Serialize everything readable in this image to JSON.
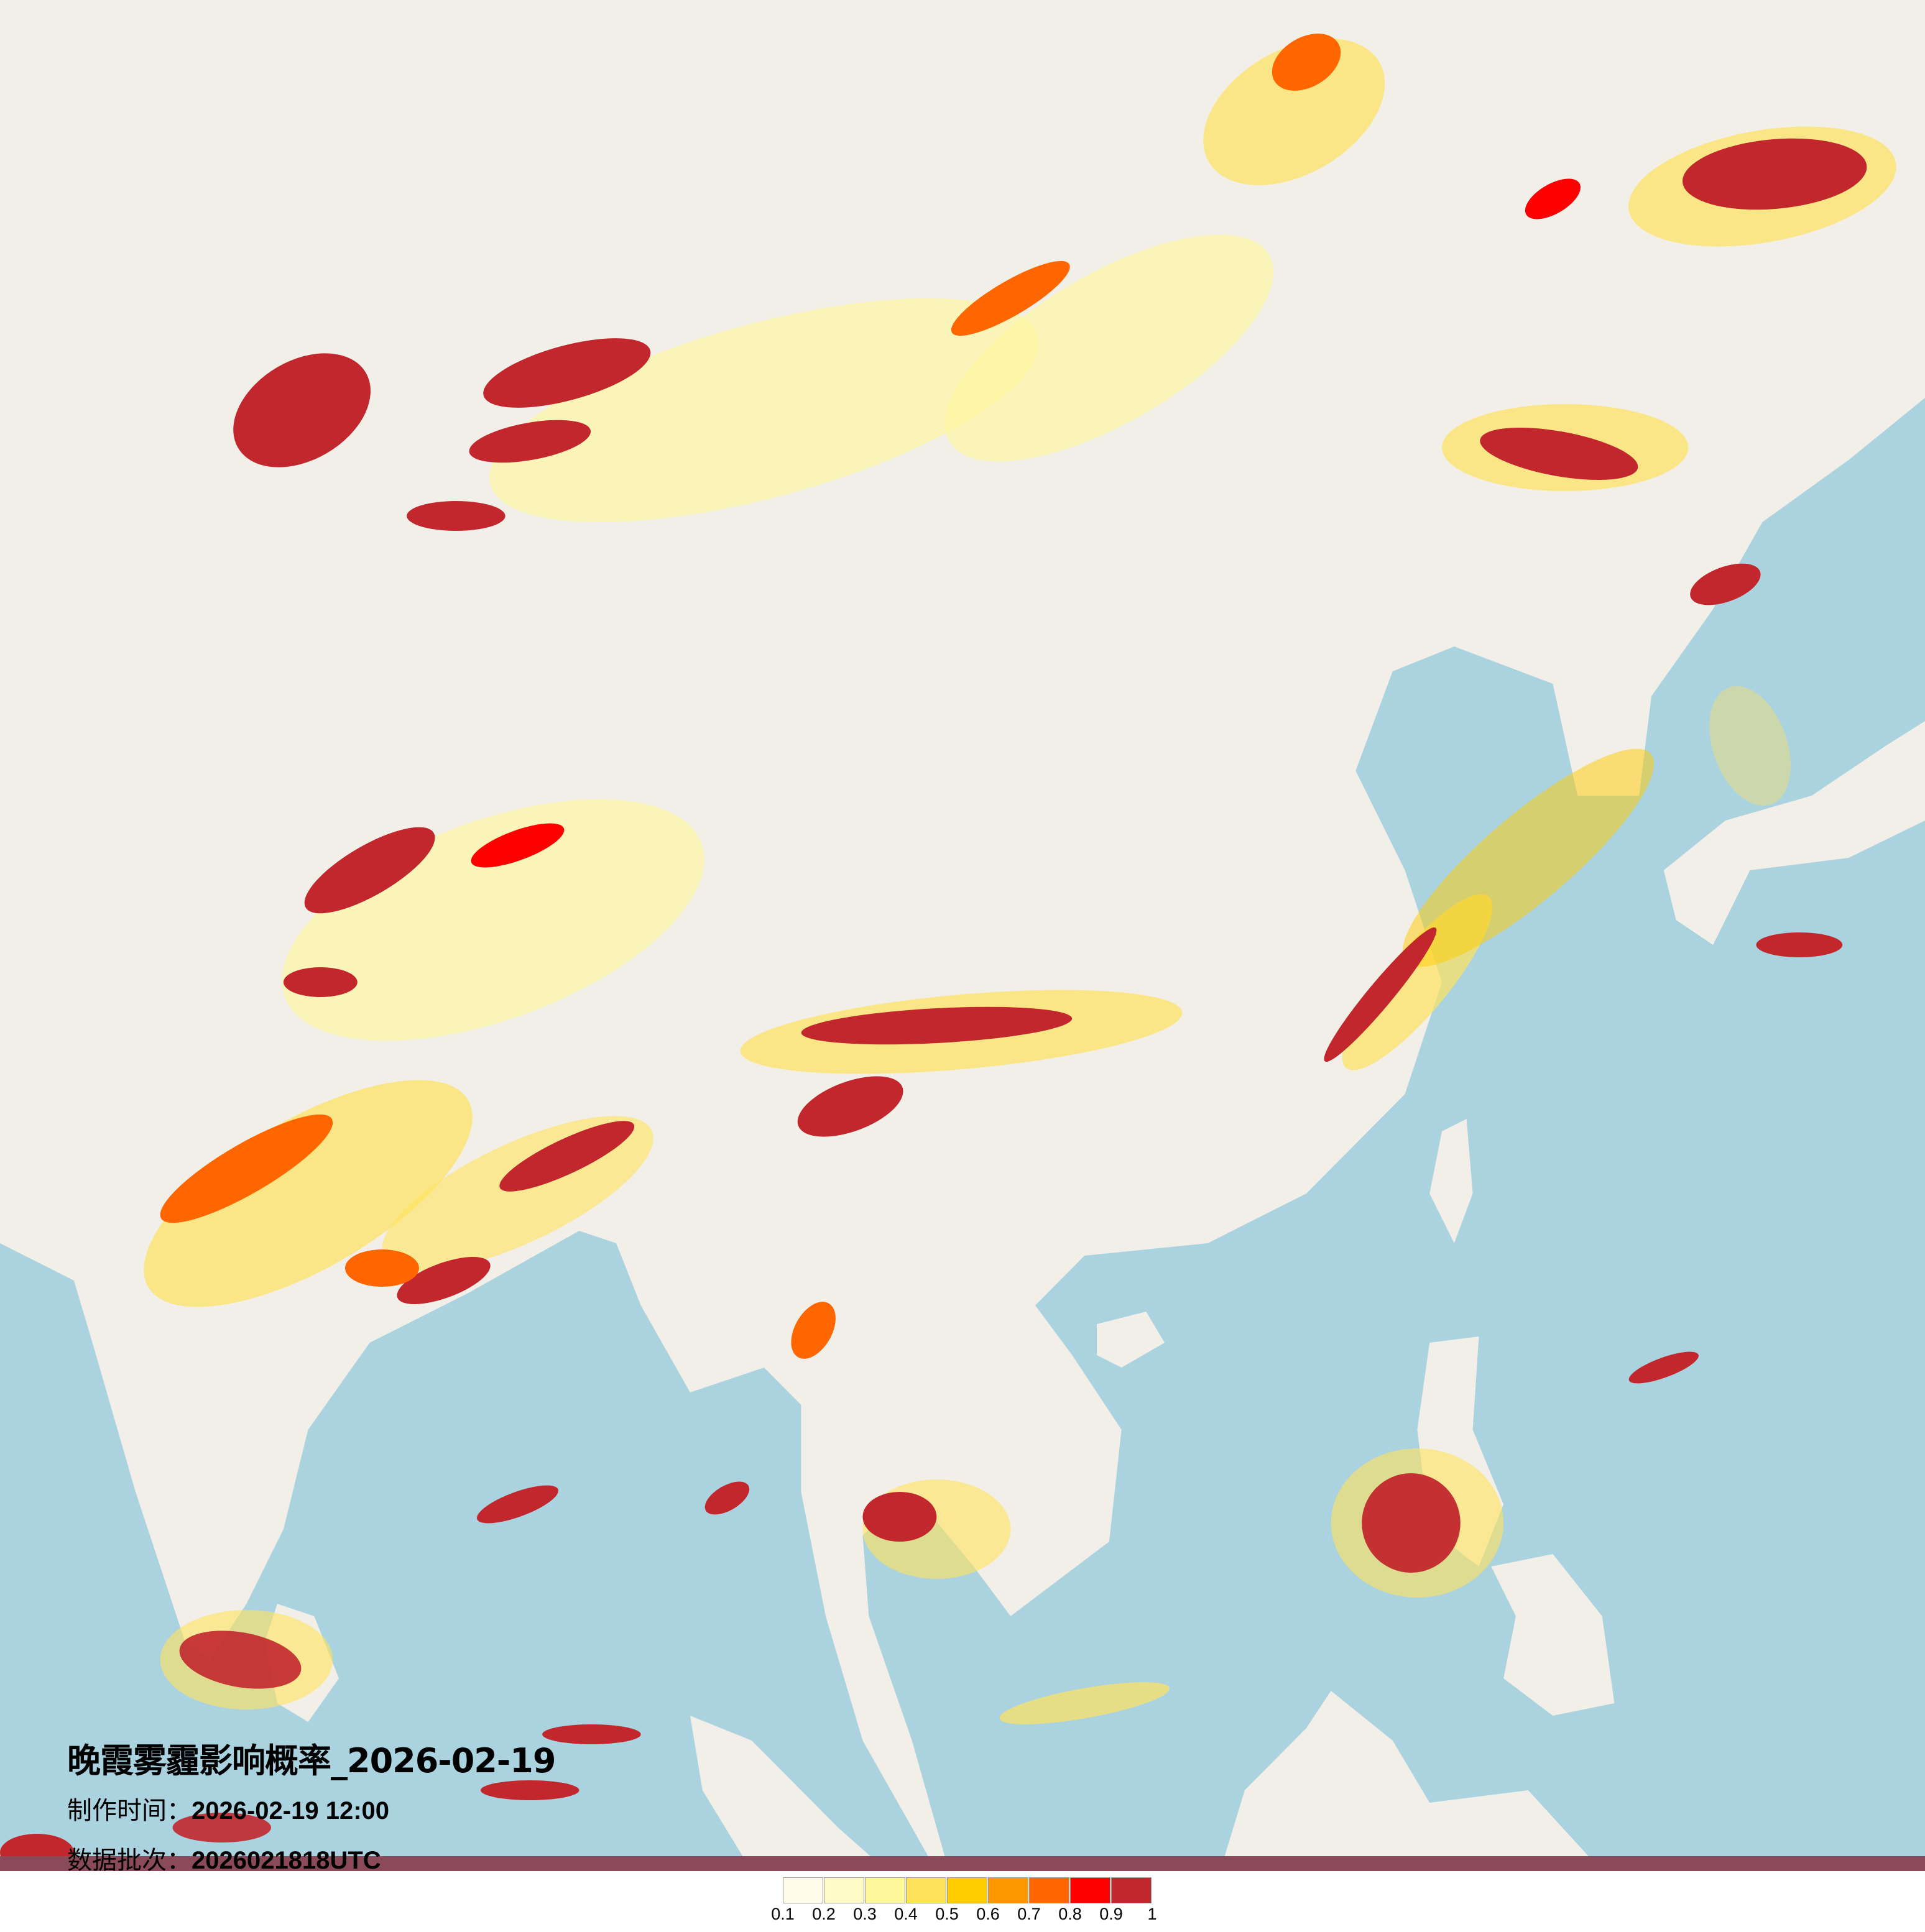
{
  "title": "晚霞雾霾影响概率_2026-02-19",
  "production_time": {
    "label": "制作时间：",
    "value": "2026-02-19 12:00"
  },
  "data_batch": {
    "label": "数据批次：",
    "value": "2026021818UTC"
  },
  "legend": {
    "ticks": [
      "0.1",
      "0.2",
      "0.3",
      "0.4",
      "0.5",
      "0.6",
      "0.7",
      "0.8",
      "0.9",
      "1"
    ],
    "colors": [
      "#fffdea",
      "#fffac6",
      "#fff799",
      "#ffe25c",
      "#ffcc00",
      "#ff9900",
      "#ff6600",
      "#ff0000",
      "#c1272d"
    ]
  },
  "basemap_colors": {
    "land": "#f2efe9",
    "sea": "#aad3df",
    "border": "#c9b3c9"
  }
}
